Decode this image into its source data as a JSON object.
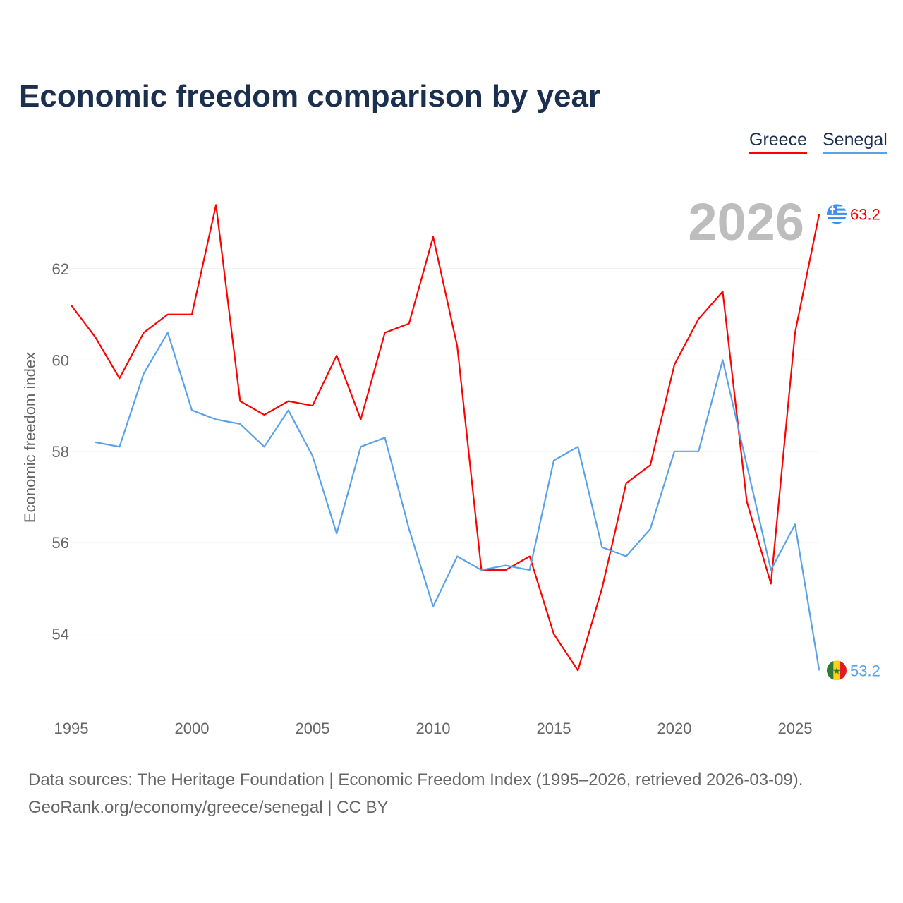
{
  "header": {
    "title": "Economic freedom comparison by year"
  },
  "legend": [
    {
      "label": "Greece",
      "color": "#ff0000"
    },
    {
      "label": "Senegal",
      "color": "#5aa2e8"
    }
  ],
  "footer": {
    "line1": "Data sources: The Heritage Foundation | Economic Freedom Index (1995–2026, retrieved 2026-03-09).",
    "line2": "GeoRank.org/economy/greece/senegal | CC BY"
  },
  "chart_data": {
    "type": "line",
    "title": "Economic freedom comparison by year",
    "xlabel": "",
    "ylabel": "Economic freedom index",
    "year_label": "2026",
    "xlim": [
      1995,
      2026
    ],
    "ylim": [
      52.4,
      64
    ],
    "xticks": [
      1995,
      2000,
      2005,
      2010,
      2015,
      2020,
      2025
    ],
    "yticks": [
      54,
      56,
      58,
      60,
      62
    ],
    "grid": true,
    "legend_position": "top-right",
    "series": [
      {
        "name": "Greece",
        "color": "#ff0000",
        "end_label": "63.2",
        "flag": "greece-flag",
        "start": 1995,
        "values": [
          61.2,
          60.5,
          59.6,
          60.6,
          61.0,
          61.0,
          63.4,
          59.1,
          58.8,
          59.1,
          59.0,
          60.1,
          58.7,
          60.6,
          60.8,
          62.7,
          60.3,
          55.4,
          55.4,
          55.7,
          54.0,
          53.2,
          55.0,
          57.3,
          57.7,
          59.9,
          60.9,
          61.5,
          56.9,
          55.1,
          60.6,
          63.2
        ]
      },
      {
        "name": "Senegal",
        "color": "#5aa2e8",
        "end_label": "53.2",
        "flag": "senegal-flag",
        "start": 1996,
        "values": [
          58.2,
          58.1,
          59.7,
          60.6,
          58.9,
          58.7,
          58.6,
          58.1,
          58.9,
          57.9,
          56.2,
          58.1,
          58.3,
          56.3,
          54.6,
          55.7,
          55.4,
          55.5,
          55.4,
          57.8,
          58.1,
          55.9,
          55.7,
          56.3,
          58.0,
          58.0,
          60.0,
          57.7,
          55.4,
          56.4,
          53.2
        ]
      }
    ]
  }
}
